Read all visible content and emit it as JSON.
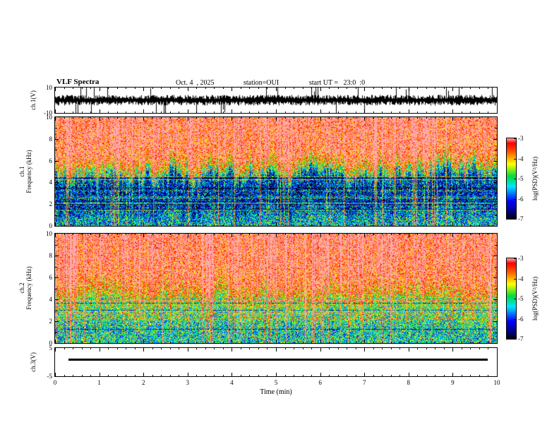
{
  "header": {
    "title": "VLF Spectra",
    "date": "Oct. 4  , 2025",
    "station": "station=OUI",
    "start_ut": "start UT =   23:0  :0"
  },
  "time_axis": {
    "label": "Time (min)",
    "ticks": [
      "0",
      "1",
      "2",
      "3",
      "4",
      "5",
      "6",
      "7",
      "8",
      "9",
      "10"
    ],
    "range_min": [
      0,
      10
    ]
  },
  "panels": {
    "ch1_wave": {
      "ylabel": "ch.1(V)",
      "y_ticks": [
        "10",
        "-10"
      ],
      "ylim": [
        -10,
        10
      ]
    },
    "ch1_spec": {
      "ylabel_line1": "ch.1",
      "ylabel_line2": "Frequency (kHz)",
      "y_ticks": [
        "10",
        "8",
        "6",
        "4",
        "2",
        "0"
      ],
      "ylim": [
        0,
        10
      ]
    },
    "ch2_spec": {
      "ylabel_line1": "ch.2",
      "ylabel_line2": "Frequency (kHz)",
      "y_ticks": [
        "10",
        "8",
        "6",
        "4",
        "2",
        "0"
      ],
      "ylim": [
        0,
        10
      ]
    },
    "ch3": {
      "ylabel": "ch.3(V)",
      "y_ticks": [
        "5",
        "-5"
      ],
      "ylim": [
        -5,
        5
      ]
    }
  },
  "colorbar": {
    "label": "log(PSD)(V²/Hz)",
    "ticks": [
      "-3",
      "-4",
      "-5",
      "-6",
      "-7"
    ],
    "zlim": [
      -7,
      -3
    ],
    "stops": [
      [
        0.0,
        0,
        0,
        0
      ],
      [
        0.07,
        0,
        0,
        110
      ],
      [
        0.22,
        0,
        0,
        255
      ],
      [
        0.4,
        0,
        230,
        255
      ],
      [
        0.53,
        0,
        220,
        60
      ],
      [
        0.68,
        255,
        255,
        0
      ],
      [
        0.84,
        255,
        80,
        0
      ],
      [
        0.94,
        255,
        0,
        0
      ],
      [
        1.0,
        255,
        170,
        170
      ]
    ]
  },
  "chart_data": [
    {
      "type": "line",
      "name": "ch.1 waveform",
      "ylabel": "ch.1(V)",
      "xlim": [
        0,
        10
      ],
      "ylim": [
        -10,
        10
      ],
      "summary": "zero-mean broadband noise, envelope about ±2 V with frequent impulsive sferic spikes reaching ±10 V across the full 10 minutes",
      "noise_amp_v": 1.6,
      "spike_prob": 0.055,
      "spike_amp_v": 9
    },
    {
      "type": "heatmap",
      "name": "ch.1 spectrogram",
      "xlabel": "Time (min)",
      "ylabel": "ch.1 Frequency (kHz)",
      "xlim": [
        0,
        10
      ],
      "ylim": [
        0,
        10
      ],
      "zlabel": "log(PSD)(V²/Hz)",
      "zlim": [
        -7,
        -3
      ],
      "profile_points": [
        {
          "freq_khz": 0.0,
          "level": -5.3
        },
        {
          "freq_khz": 1.2,
          "level": -5.6
        },
        {
          "freq_khz": 2.0,
          "level": -6.2
        },
        {
          "freq_khz": 3.2,
          "level": -6.4
        },
        {
          "freq_khz": 4.4,
          "level": -6.0
        },
        {
          "freq_khz": 5.0,
          "level": -4.9
        },
        {
          "freq_khz": 5.8,
          "level": -3.9
        },
        {
          "freq_khz": 6.6,
          "level": -3.3
        },
        {
          "freq_khz": 10.0,
          "level": -3.1
        }
      ],
      "texture": {
        "noise": 1.1,
        "streak_prob": 0.28,
        "strong_streak_prob": 0.045,
        "speckle_prob": 0.05,
        "edge_wander_khz": 1.0,
        "hline_count": 14
      },
      "features": "saturated red band above ~6 kHz; jagged yellow-green transition 4.5-6 kHz; dark blue background 2-4.5 kHz with green speckle; vertical red sferic streaks at all frequencies; faint horizontal interference lines 2-4.5 kHz"
    },
    {
      "type": "heatmap",
      "name": "ch.2 spectrogram",
      "xlabel": "Time (min)",
      "ylabel": "ch.2 Frequency (kHz)",
      "xlim": [
        0,
        10
      ],
      "ylim": [
        0,
        10
      ],
      "zlabel": "log(PSD)(V²/Hz)",
      "zlim": [
        -7,
        -3
      ],
      "profile_points": [
        {
          "freq_khz": 0.0,
          "level": -5.1
        },
        {
          "freq_khz": 1.0,
          "level": -5.3
        },
        {
          "freq_khz": 2.2,
          "level": -5.1
        },
        {
          "freq_khz": 3.4,
          "level": -4.8
        },
        {
          "freq_khz": 4.4,
          "level": -4.3
        },
        {
          "freq_khz": 5.2,
          "level": -3.8
        },
        {
          "freq_khz": 6.2,
          "level": -3.4
        },
        {
          "freq_khz": 10.0,
          "level": -3.2
        }
      ],
      "texture": {
        "noise": 1.0,
        "streak_prob": 0.4,
        "strong_streak_prob": 0.05,
        "speckle_prob": 0.07,
        "edge_wander_khz": 0.8,
        "hline_count": 10
      },
      "features": "red-orange band above ~5.5 kHz with dense vertical streaking; yellow-green 3.5-5.5 kHz; green-cyan 0-3.5 kHz with blue speckle; cluster of strong streaks near 3 min"
    },
    {
      "type": "line",
      "name": "ch.3 level",
      "ylabel": "ch.3(V)",
      "xlim": [
        0,
        10
      ],
      "ylim": [
        -5,
        5
      ],
      "segments": [
        {
          "x_start": 0.3,
          "x_end": 9.8,
          "value": 1.0
        }
      ],
      "summary": "constant level near +1 V from ~0.3 to ~9.8 min"
    }
  ]
}
